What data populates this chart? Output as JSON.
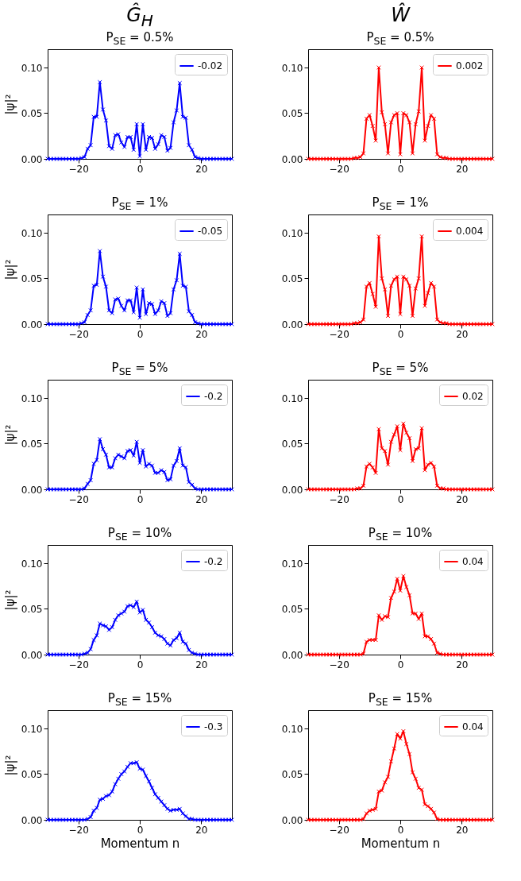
{
  "chart_data": [
    {
      "type": "line",
      "annotations": [
        "Ĝ$_{H}$"
      ],
      "title": "P$_{SE}$ = 0.5%",
      "ylabel": "|ψ|²",
      "xlim": [
        -30,
        30
      ],
      "ylim": [
        0,
        0.12
      ],
      "xticks": [
        -20,
        0,
        20
      ],
      "yticks": [
        {
          "value": 0,
          "label": "0.00"
        },
        {
          "value": 0.05,
          "label": "0.05"
        },
        {
          "value": 0.1,
          "label": "0.10"
        }
      ],
      "legend": "top right",
      "marker": "cross",
      "x": [
        -30,
        -29,
        -28,
        -27,
        -26,
        -25,
        -24,
        -23,
        -22,
        -21,
        -20,
        -19,
        -18,
        -17,
        -16,
        -15,
        -14,
        -13,
        -12,
        -11,
        -10,
        -9,
        -8,
        -7,
        -6,
        -5,
        -4,
        -3,
        -2,
        -1,
        0,
        1,
        2,
        3,
        4,
        5,
        6,
        7,
        8,
        9,
        10,
        11,
        12,
        13,
        14,
        15,
        16,
        17,
        18,
        19,
        20,
        21,
        22,
        23,
        24,
        25,
        26,
        27,
        28,
        29,
        30
      ],
      "series": [
        {
          "name": "-0.02",
          "color": "#0000ff",
          "values": [
            0,
            0,
            0,
            0,
            0,
            0,
            0,
            0,
            0,
            0,
            0,
            0.001,
            0.002,
            0.011,
            0.015,
            0.046,
            0.046,
            0.084,
            0.054,
            0.042,
            0.014,
            0.011,
            0.026,
            0.027,
            0.018,
            0.013,
            0.024,
            0.024,
            0.01,
            0.038,
            0.003,
            0.038,
            0.01,
            0.024,
            0.023,
            0.011,
            0.016,
            0.026,
            0.024,
            0.009,
            0.012,
            0.04,
            0.053,
            0.083,
            0.046,
            0.045,
            0.015,
            0.01,
            0.002,
            0.001,
            0,
            0,
            0,
            0,
            0,
            0,
            0,
            0,
            0,
            0,
            0
          ]
        }
      ]
    },
    {
      "type": "line",
      "annotations": [
        "Ŵ"
      ],
      "title": "P$_{SE}$ = 0.5%",
      "xlim": [
        -30,
        30
      ],
      "ylim": [
        0,
        0.12
      ],
      "xticks": [
        -20,
        0,
        20
      ],
      "yticks": [
        {
          "value": 0,
          "label": "0.00"
        },
        {
          "value": 0.05,
          "label": "0.05"
        },
        {
          "value": 0.1,
          "label": "0.10"
        }
      ],
      "legend": "top right",
      "marker": "cross",
      "x": [
        -30,
        -29,
        -28,
        -27,
        -26,
        -25,
        -24,
        -23,
        -22,
        -21,
        -20,
        -19,
        -18,
        -17,
        -16,
        -15,
        -14,
        -13,
        -12,
        -11,
        -10,
        -9,
        -8,
        -7,
        -6,
        -5,
        -4,
        -3,
        -2,
        -1,
        0,
        1,
        2,
        3,
        4,
        5,
        6,
        7,
        8,
        9,
        10,
        11,
        12,
        13,
        14,
        15,
        16,
        17,
        18,
        19,
        20,
        21,
        22,
        23,
        24,
        25,
        26,
        27,
        28,
        29,
        30
      ],
      "series": [
        {
          "name": "0.002",
          "color": "#ff0000",
          "values": [
            0,
            0,
            0,
            0,
            0,
            0,
            0,
            0,
            0,
            0,
            0,
            0,
            0,
            0,
            0,
            0.001,
            0.001,
            0.002,
            0.006,
            0.044,
            0.048,
            0.036,
            0.02,
            0.1,
            0.051,
            0.038,
            0.006,
            0.04,
            0.048,
            0.05,
            0.005,
            0.05,
            0.048,
            0.04,
            0.006,
            0.038,
            0.052,
            0.1,
            0.02,
            0.036,
            0.048,
            0.044,
            0.005,
            0.002,
            0.001,
            0.001,
            0,
            0,
            0,
            0,
            0,
            0,
            0,
            0,
            0,
            0,
            0,
            0,
            0,
            0,
            0
          ]
        }
      ]
    },
    {
      "type": "line",
      "title": "P$_{SE}$ = 1%",
      "ylabel": "|ψ|²",
      "xlim": [
        -30,
        30
      ],
      "ylim": [
        0,
        0.12
      ],
      "xticks": [
        -20,
        0,
        20
      ],
      "yticks": [
        {
          "value": 0,
          "label": "0.00"
        },
        {
          "value": 0.05,
          "label": "0.05"
        },
        {
          "value": 0.1,
          "label": "0.10"
        }
      ],
      "legend": "top right",
      "marker": "cross",
      "x": [
        -30,
        -29,
        -28,
        -27,
        -26,
        -25,
        -24,
        -23,
        -22,
        -21,
        -20,
        -19,
        -18,
        -17,
        -16,
        -15,
        -14,
        -13,
        -12,
        -11,
        -10,
        -9,
        -8,
        -7,
        -6,
        -5,
        -4,
        -3,
        -2,
        -1,
        0,
        1,
        2,
        3,
        4,
        5,
        6,
        7,
        8,
        9,
        10,
        11,
        12,
        13,
        14,
        15,
        16,
        17,
        18,
        19,
        20,
        21,
        22,
        23,
        24,
        25,
        26,
        27,
        28,
        29,
        30
      ],
      "series": [
        {
          "name": "-0.05",
          "color": "#0000ff",
          "values": [
            0,
            0,
            0,
            0,
            0,
            0,
            0,
            0,
            0,
            0,
            0,
            0.001,
            0.002,
            0.01,
            0.015,
            0.042,
            0.043,
            0.08,
            0.052,
            0.041,
            0.015,
            0.012,
            0.027,
            0.028,
            0.02,
            0.015,
            0.026,
            0.026,
            0.013,
            0.04,
            0.007,
            0.038,
            0.011,
            0.023,
            0.022,
            0.011,
            0.015,
            0.025,
            0.023,
            0.009,
            0.012,
            0.038,
            0.048,
            0.077,
            0.042,
            0.041,
            0.014,
            0.01,
            0.002,
            0.001,
            0,
            0,
            0,
            0,
            0,
            0,
            0,
            0,
            0,
            0,
            0
          ]
        }
      ]
    },
    {
      "type": "line",
      "title": "P$_{SE}$ = 1%",
      "xlim": [
        -30,
        30
      ],
      "ylim": [
        0,
        0.12
      ],
      "xticks": [
        -20,
        0,
        20
      ],
      "yticks": [
        {
          "value": 0,
          "label": "0.00"
        },
        {
          "value": 0.05,
          "label": "0.05"
        },
        {
          "value": 0.1,
          "label": "0.10"
        }
      ],
      "legend": "top right",
      "marker": "cross",
      "x": [
        -30,
        -29,
        -28,
        -27,
        -26,
        -25,
        -24,
        -23,
        -22,
        -21,
        -20,
        -19,
        -18,
        -17,
        -16,
        -15,
        -14,
        -13,
        -12,
        -11,
        -10,
        -9,
        -8,
        -7,
        -6,
        -5,
        -4,
        -3,
        -2,
        -1,
        0,
        1,
        2,
        3,
        4,
        5,
        6,
        7,
        8,
        9,
        10,
        11,
        12,
        13,
        14,
        15,
        16,
        17,
        18,
        19,
        20,
        21,
        22,
        23,
        24,
        25,
        26,
        27,
        28,
        29,
        30
      ],
      "series": [
        {
          "name": "0.004",
          "color": "#ff0000",
          "values": [
            0,
            0,
            0,
            0,
            0,
            0,
            0,
            0,
            0,
            0,
            0,
            0,
            0,
            0,
            0,
            0.001,
            0.001,
            0.002,
            0.005,
            0.041,
            0.045,
            0.033,
            0.019,
            0.096,
            0.05,
            0.038,
            0.009,
            0.042,
            0.049,
            0.052,
            0.011,
            0.052,
            0.049,
            0.042,
            0.009,
            0.039,
            0.05,
            0.096,
            0.02,
            0.034,
            0.045,
            0.041,
            0.005,
            0.002,
            0.001,
            0.001,
            0,
            0,
            0,
            0,
            0,
            0,
            0,
            0,
            0,
            0,
            0,
            0,
            0,
            0,
            0
          ]
        }
      ]
    },
    {
      "type": "line",
      "title": "P$_{SE}$ = 5%",
      "ylabel": "|ψ|²",
      "xlim": [
        -30,
        30
      ],
      "ylim": [
        0,
        0.12
      ],
      "xticks": [
        -20,
        0,
        20
      ],
      "yticks": [
        {
          "value": 0,
          "label": "0.00"
        },
        {
          "value": 0.05,
          "label": "0.05"
        },
        {
          "value": 0.1,
          "label": "0.10"
        }
      ],
      "legend": "top right",
      "marker": "cross",
      "x": [
        -30,
        -29,
        -28,
        -27,
        -26,
        -25,
        -24,
        -23,
        -22,
        -21,
        -20,
        -19,
        -18,
        -17,
        -16,
        -15,
        -14,
        -13,
        -12,
        -11,
        -10,
        -9,
        -8,
        -7,
        -6,
        -5,
        -4,
        -3,
        -2,
        -1,
        0,
        1,
        2,
        3,
        4,
        5,
        6,
        7,
        8,
        9,
        10,
        11,
        12,
        13,
        14,
        15,
        16,
        17,
        18,
        19,
        20,
        21,
        22,
        23,
        24,
        25,
        26,
        27,
        28,
        29,
        30
      ],
      "series": [
        {
          "name": "-0.2",
          "color": "#0000ff",
          "values": [
            0,
            0,
            0,
            0,
            0,
            0,
            0,
            0,
            0,
            0,
            0,
            0,
            0.001,
            0.006,
            0.01,
            0.028,
            0.032,
            0.055,
            0.044,
            0.038,
            0.024,
            0.024,
            0.034,
            0.038,
            0.036,
            0.034,
            0.042,
            0.043,
            0.037,
            0.052,
            0.029,
            0.043,
            0.025,
            0.028,
            0.026,
            0.018,
            0.018,
            0.021,
            0.019,
            0.01,
            0.011,
            0.026,
            0.031,
            0.045,
            0.026,
            0.024,
            0.008,
            0.005,
            0.001,
            0,
            0,
            0,
            0,
            0,
            0,
            0,
            0,
            0,
            0,
            0,
            0
          ]
        }
      ]
    },
    {
      "type": "line",
      "title": "P$_{SE}$ = 5%",
      "xlim": [
        -30,
        30
      ],
      "ylim": [
        0,
        0.12
      ],
      "xticks": [
        -20,
        0,
        20
      ],
      "yticks": [
        {
          "value": 0,
          "label": "0.00"
        },
        {
          "value": 0.05,
          "label": "0.05"
        },
        {
          "value": 0.1,
          "label": "0.10"
        }
      ],
      "legend": "top right",
      "marker": "cross",
      "x": [
        -30,
        -29,
        -28,
        -27,
        -26,
        -25,
        -24,
        -23,
        -22,
        -21,
        -20,
        -19,
        -18,
        -17,
        -16,
        -15,
        -14,
        -13,
        -12,
        -11,
        -10,
        -9,
        -8,
        -7,
        -6,
        -5,
        -4,
        -3,
        -2,
        -1,
        0,
        1,
        2,
        3,
        4,
        5,
        6,
        7,
        8,
        9,
        10,
        11,
        12,
        13,
        14,
        15,
        16,
        17,
        18,
        19,
        20,
        21,
        22,
        23,
        24,
        25,
        26,
        27,
        28,
        29,
        30
      ],
      "series": [
        {
          "name": "0.02",
          "color": "#ff0000",
          "values": [
            0,
            0,
            0,
            0,
            0,
            0,
            0,
            0,
            0,
            0,
            0,
            0,
            0,
            0,
            0,
            0,
            0.001,
            0.001,
            0.004,
            0.025,
            0.028,
            0.024,
            0.018,
            0.066,
            0.045,
            0.042,
            0.027,
            0.052,
            0.06,
            0.069,
            0.043,
            0.072,
            0.062,
            0.056,
            0.031,
            0.044,
            0.045,
            0.067,
            0.021,
            0.027,
            0.029,
            0.025,
            0.004,
            0.001,
            0.001,
            0,
            0,
            0,
            0,
            0,
            0,
            0,
            0,
            0,
            0,
            0,
            0,
            0,
            0,
            0,
            0
          ]
        }
      ]
    },
    {
      "type": "line",
      "title": "P$_{SE}$ = 10%",
      "ylabel": "|ψ|²",
      "xlim": [
        -30,
        30
      ],
      "ylim": [
        0,
        0.12
      ],
      "xticks": [
        -20,
        0,
        20
      ],
      "yticks": [
        {
          "value": 0,
          "label": "0.00"
        },
        {
          "value": 0.05,
          "label": "0.05"
        },
        {
          "value": 0.1,
          "label": "0.10"
        }
      ],
      "legend": "top right",
      "marker": "cross",
      "x": [
        -30,
        -29,
        -28,
        -27,
        -26,
        -25,
        -24,
        -23,
        -22,
        -21,
        -20,
        -19,
        -18,
        -17,
        -16,
        -15,
        -14,
        -13,
        -12,
        -11,
        -10,
        -9,
        -8,
        -7,
        -6,
        -5,
        -4,
        -3,
        -2,
        -1,
        0,
        1,
        2,
        3,
        4,
        5,
        6,
        7,
        8,
        9,
        10,
        11,
        12,
        13,
        14,
        15,
        16,
        17,
        18,
        19,
        20,
        21,
        22,
        23,
        24,
        25,
        26,
        27,
        28,
        29,
        30
      ],
      "series": [
        {
          "name": "-0.2",
          "color": "#0000ff",
          "values": [
            0,
            0,
            0,
            0,
            0,
            0,
            0,
            0,
            0,
            0,
            0,
            0,
            0.001,
            0.002,
            0.006,
            0.016,
            0.021,
            0.034,
            0.032,
            0.031,
            0.027,
            0.03,
            0.038,
            0.043,
            0.045,
            0.047,
            0.053,
            0.054,
            0.052,
            0.058,
            0.046,
            0.049,
            0.038,
            0.035,
            0.03,
            0.024,
            0.021,
            0.02,
            0.017,
            0.012,
            0.01,
            0.016,
            0.018,
            0.024,
            0.014,
            0.012,
            0.005,
            0.002,
            0.001,
            0,
            0,
            0,
            0,
            0,
            0,
            0,
            0,
            0,
            0,
            0,
            0
          ]
        }
      ]
    },
    {
      "type": "line",
      "title": "P$_{SE}$ = 10%",
      "xlim": [
        -30,
        30
      ],
      "ylim": [
        0,
        0.12
      ],
      "xticks": [
        -20,
        0,
        20
      ],
      "yticks": [
        {
          "value": 0,
          "label": "0.00"
        },
        {
          "value": 0.05,
          "label": "0.05"
        },
        {
          "value": 0.1,
          "label": "0.10"
        }
      ],
      "legend": "top right",
      "marker": "cross",
      "x": [
        -30,
        -29,
        -28,
        -27,
        -26,
        -25,
        -24,
        -23,
        -22,
        -21,
        -20,
        -19,
        -18,
        -17,
        -16,
        -15,
        -14,
        -13,
        -12,
        -11,
        -10,
        -9,
        -8,
        -7,
        -6,
        -5,
        -4,
        -3,
        -2,
        -1,
        0,
        1,
        2,
        3,
        4,
        5,
        6,
        7,
        8,
        9,
        10,
        11,
        12,
        13,
        14,
        15,
        16,
        17,
        18,
        19,
        20,
        21,
        22,
        23,
        24,
        25,
        26,
        27,
        28,
        29,
        30
      ],
      "series": [
        {
          "name": "0.04",
          "color": "#ff0000",
          "values": [
            0,
            0,
            0,
            0,
            0,
            0,
            0,
            0,
            0,
            0,
            0,
            0,
            0,
            0,
            0,
            0,
            0,
            0,
            0.001,
            0.014,
            0.016,
            0.016,
            0.016,
            0.043,
            0.038,
            0.042,
            0.041,
            0.062,
            0.069,
            0.083,
            0.07,
            0.086,
            0.074,
            0.065,
            0.045,
            0.045,
            0.039,
            0.045,
            0.02,
            0.02,
            0.017,
            0.012,
            0.002,
            0.001,
            0,
            0,
            0,
            0,
            0,
            0,
            0,
            0,
            0,
            0,
            0,
            0,
            0,
            0,
            0,
            0,
            0
          ]
        }
      ]
    },
    {
      "type": "line",
      "title": "P$_{SE}$ = 15%",
      "ylabel": "|ψ|²",
      "xlabel": "Momentum n",
      "xlim": [
        -30,
        30
      ],
      "ylim": [
        0,
        0.12
      ],
      "xticks": [
        -20,
        0,
        20
      ],
      "yticks": [
        {
          "value": 0,
          "label": "0.00"
        },
        {
          "value": 0.05,
          "label": "0.05"
        },
        {
          "value": 0.1,
          "label": "0.10"
        }
      ],
      "legend": "top right",
      "marker": "cross",
      "x": [
        -30,
        -29,
        -28,
        -27,
        -26,
        -25,
        -24,
        -23,
        -22,
        -21,
        -20,
        -19,
        -18,
        -17,
        -16,
        -15,
        -14,
        -13,
        -12,
        -11,
        -10,
        -9,
        -8,
        -7,
        -6,
        -5,
        -4,
        -3,
        -2,
        -1,
        0,
        1,
        2,
        3,
        4,
        5,
        6,
        7,
        8,
        9,
        10,
        11,
        12,
        13,
        14,
        15,
        16,
        17,
        18,
        19,
        20,
        21,
        22,
        23,
        24,
        25,
        26,
        27,
        28,
        29,
        30
      ],
      "series": [
        {
          "name": "-0.3",
          "color": "#0000ff",
          "values": [
            0,
            0,
            0,
            0,
            0,
            0,
            0,
            0,
            0,
            0,
            0,
            0,
            0,
            0.001,
            0.003,
            0.01,
            0.013,
            0.022,
            0.023,
            0.026,
            0.027,
            0.031,
            0.039,
            0.045,
            0.05,
            0.053,
            0.058,
            0.062,
            0.062,
            0.063,
            0.056,
            0.055,
            0.048,
            0.042,
            0.035,
            0.028,
            0.024,
            0.02,
            0.016,
            0.012,
            0.01,
            0.011,
            0.011,
            0.012,
            0.007,
            0.004,
            0.001,
            0.001,
            0,
            0,
            0,
            0,
            0,
            0,
            0,
            0,
            0,
            0,
            0,
            0,
            0
          ]
        }
      ]
    },
    {
      "type": "line",
      "title": "P$_{SE}$ = 15%",
      "xlabel": "Momentum n",
      "xlim": [
        -30,
        30
      ],
      "ylim": [
        0,
        0.12
      ],
      "xticks": [
        -20,
        0,
        20
      ],
      "yticks": [
        {
          "value": 0,
          "label": "0.00"
        },
        {
          "value": 0.05,
          "label": "0.05"
        },
        {
          "value": 0.1,
          "label": "0.10"
        }
      ],
      "legend": "top right",
      "marker": "cross",
      "x": [
        -30,
        -29,
        -28,
        -27,
        -26,
        -25,
        -24,
        -23,
        -22,
        -21,
        -20,
        -19,
        -18,
        -17,
        -16,
        -15,
        -14,
        -13,
        -12,
        -11,
        -10,
        -9,
        -8,
        -7,
        -6,
        -5,
        -4,
        -3,
        -2,
        -1,
        0,
        1,
        2,
        3,
        4,
        5,
        6,
        7,
        8,
        9,
        10,
        11,
        12,
        13,
        14,
        15,
        16,
        17,
        18,
        19,
        20,
        21,
        22,
        23,
        24,
        25,
        26,
        27,
        28,
        29,
        30
      ],
      "series": [
        {
          "name": "0.04",
          "color": "#ff0000",
          "values": [
            0,
            0,
            0,
            0,
            0,
            0,
            0,
            0,
            0,
            0,
            0,
            0,
            0,
            0,
            0,
            0,
            0,
            0,
            0.001,
            0.007,
            0.01,
            0.011,
            0.012,
            0.031,
            0.032,
            0.041,
            0.047,
            0.064,
            0.078,
            0.094,
            0.089,
            0.097,
            0.083,
            0.072,
            0.052,
            0.045,
            0.035,
            0.033,
            0.017,
            0.015,
            0.012,
            0.008,
            0.001,
            0,
            0,
            0,
            0,
            0,
            0,
            0,
            0,
            0,
            0,
            0,
            0,
            0,
            0,
            0,
            0,
            0,
            0
          ]
        }
      ]
    }
  ]
}
